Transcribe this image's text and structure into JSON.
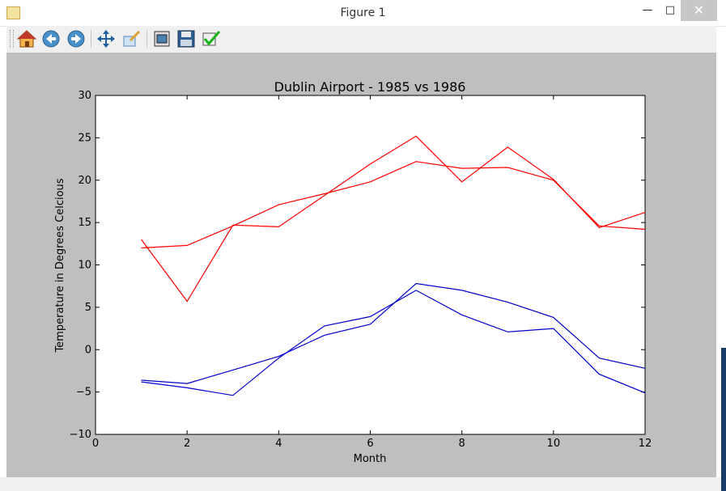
{
  "window": {
    "title": "Figure 1"
  },
  "toolbar": {
    "buttons": [
      {
        "name": "home",
        "icon": "home-icon"
      },
      {
        "name": "back",
        "icon": "back-arrow-icon"
      },
      {
        "name": "forward",
        "icon": "forward-arrow-icon"
      },
      {
        "name": "pan",
        "icon": "move-arrows-icon"
      },
      {
        "name": "zoom",
        "icon": "zoom-rect-icon"
      },
      {
        "name": "subplots",
        "icon": "subplots-icon"
      },
      {
        "name": "save",
        "icon": "floppy-disk-icon"
      },
      {
        "name": "edit",
        "icon": "checkmark-icon"
      }
    ]
  },
  "colors": {
    "background": "#bfbfbf",
    "plot_bg": "#ffffff",
    "series_red": "#ff0000",
    "series_blue": "#0000cc"
  },
  "chart_data": {
    "type": "line",
    "title": "Dublin Airport - 1985 vs 1986",
    "xlabel": "Month",
    "ylabel": "Temperature in Degrees Celcious",
    "xlim": [
      0,
      12
    ],
    "ylim": [
      -10,
      30
    ],
    "xticks": [
      "0",
      "2",
      "4",
      "6",
      "8",
      "10",
      "12"
    ],
    "yticks": [
      "−10",
      "−5",
      "0",
      "5",
      "10",
      "15",
      "20",
      "25",
      "30"
    ],
    "grid": false,
    "x": [
      1,
      2,
      3,
      4,
      5,
      6,
      7,
      8,
      9,
      10,
      11,
      12
    ],
    "series": [
      {
        "color": "#ff0000",
        "values": [
          13.0,
          5.7,
          14.7,
          14.5,
          18.2,
          21.9,
          25.2,
          19.8,
          23.9,
          20.1,
          14.4,
          16.2
        ]
      },
      {
        "color": "#ff0000",
        "values": [
          12.0,
          12.3,
          14.6,
          17.1,
          18.4,
          19.8,
          22.2,
          21.4,
          21.5,
          20.0,
          14.6,
          14.2
        ]
      },
      {
        "color": "#0000cc",
        "values": [
          -3.6,
          -4.0,
          -2.4,
          -0.8,
          1.7,
          3.0,
          7.8,
          7.0,
          5.6,
          3.8,
          -1.0,
          -2.2
        ]
      },
      {
        "color": "#0000cc",
        "values": [
          -3.8,
          -4.5,
          -5.4,
          -1.0,
          2.8,
          3.9,
          7.0,
          4.1,
          2.1,
          2.5,
          -2.9,
          -5.1
        ]
      }
    ]
  }
}
